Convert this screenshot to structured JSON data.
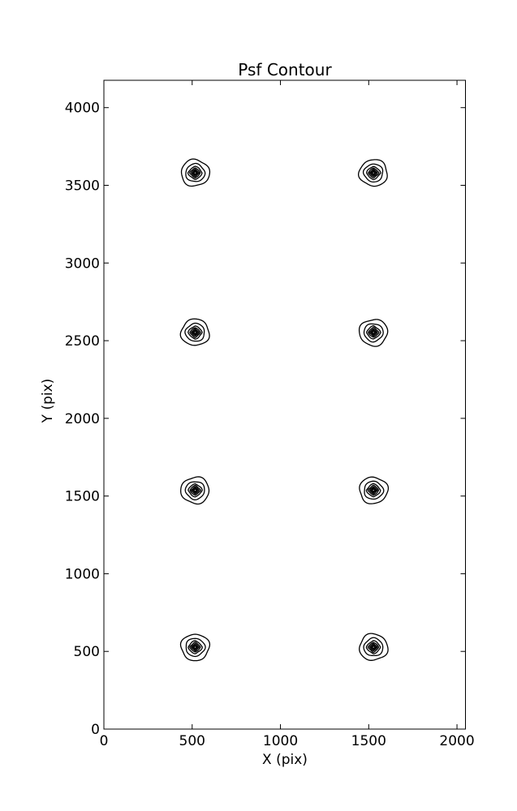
{
  "chart_data": {
    "type": "contour",
    "title": "Psf Contour",
    "xlabel": "X (pix)",
    "ylabel": "Y (pix)",
    "xlim": [
      0,
      2048
    ],
    "ylim": [
      0,
      4176
    ],
    "xticks": [
      0,
      500,
      1000,
      1500,
      2000
    ],
    "yticks": [
      0,
      500,
      1000,
      1500,
      2000,
      2500,
      3000,
      3500,
      4000
    ],
    "grid": false,
    "line_color": "#000000",
    "background_color": "#ffffff",
    "psf_centers": [
      {
        "x": 517,
        "y": 527
      },
      {
        "x": 1527,
        "y": 527
      },
      {
        "x": 517,
        "y": 1537
      },
      {
        "x": 1527,
        "y": 1537
      },
      {
        "x": 517,
        "y": 2553
      },
      {
        "x": 1527,
        "y": 2553
      },
      {
        "x": 517,
        "y": 3580
      },
      {
        "x": 1527,
        "y": 3580
      }
    ],
    "contour": {
      "levels": 7,
      "outer_rx": 80,
      "outer_ry": 85,
      "ring_radius_fractions": [
        1.0,
        0.68,
        0.5,
        0.38,
        0.28,
        0.19,
        0.1
      ],
      "ring_squareness": [
        2.0,
        1.9,
        1.35,
        1.2,
        1.1,
        1.0,
        1.0
      ],
      "ring_wobble": [
        0.05,
        0.045,
        0.035,
        0.03,
        0.02,
        0.015,
        0
      ]
    }
  }
}
